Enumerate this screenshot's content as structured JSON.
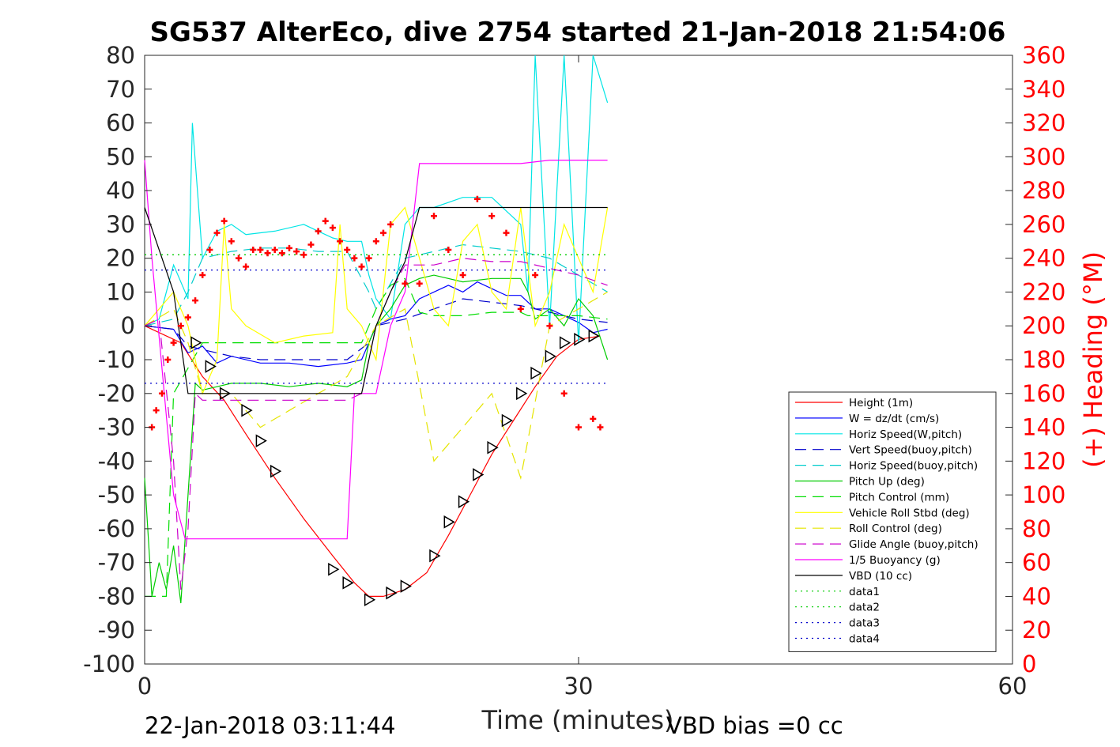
{
  "chart_data": {
    "type": "line",
    "title": "SG537 AlterEco, dive 2754 started 21-Jan-2018 21:54:06",
    "xlabel": "Time (minutes)",
    "ylabel_left": "",
    "ylabel_right": "(+) Heading (°M)",
    "xlim": [
      0,
      60
    ],
    "ylim_left": [
      -100,
      80
    ],
    "ylim_right": [
      0,
      360
    ],
    "x_ticks": [
      "0",
      "30",
      "60"
    ],
    "y_ticks_left": [
      "80",
      "70",
      "60",
      "50",
      "40",
      "30",
      "20",
      "10",
      "0",
      "-10",
      "-20",
      "-30",
      "-40",
      "-50",
      "-60",
      "-70",
      "-80",
      "-90",
      "-100"
    ],
    "y_ticks_right": [
      "360",
      "340",
      "320",
      "300",
      "280",
      "260",
      "240",
      "220",
      "200",
      "180",
      "160",
      "140",
      "120",
      "100",
      "80",
      "60",
      "40",
      "20",
      "0"
    ],
    "footer_left": "22-Jan-2018 03:11:44",
    "footer_right": "VBD bias =0 cc",
    "legend_position": "bottom-right",
    "series": [
      {
        "name": "Height (1m)",
        "color": "#ff0000",
        "style": "solid",
        "x": [
          0,
          2.5,
          4,
          5.5,
          7,
          9,
          11,
          13,
          14.5,
          15.5,
          16.5,
          18,
          19.5,
          21,
          22.5,
          24,
          25.5,
          27,
          28.5,
          30,
          31.5
        ],
        "y": [
          0,
          -5,
          -15,
          -22,
          -32,
          -45,
          -57,
          -68,
          -76,
          -80,
          -80,
          -78,
          -73,
          -62,
          -50,
          -38,
          -28,
          -18,
          -9,
          -4,
          -3
        ]
      },
      {
        "name": "W = dz/dt (cm/s)",
        "color": "#0000ff",
        "style": "solid",
        "x": [
          0,
          2,
          3,
          4,
          5,
          6,
          8,
          10,
          12,
          14,
          15,
          15.5,
          16,
          17,
          18,
          19,
          20,
          21,
          22,
          23,
          24,
          25,
          26,
          27,
          28,
          29,
          30,
          31,
          32
        ],
        "y": [
          0,
          -1,
          -8,
          -6,
          -11,
          -9,
          -11,
          -11,
          -12,
          -11,
          -10,
          -5,
          0,
          2,
          3,
          8,
          10,
          12,
          10,
          13,
          11,
          9,
          9,
          5,
          5,
          3,
          1,
          -2,
          -1
        ]
      },
      {
        "name": "Horiz Speed(W,pitch)",
        "color": "#00e5e5",
        "style": "solid",
        "x": [
          0,
          1,
          2,
          3,
          3.3,
          4,
          5,
          6,
          7,
          9,
          11,
          13,
          14,
          15,
          15.5,
          16,
          17,
          18,
          19,
          20,
          22,
          24,
          26,
          26.5,
          27,
          28,
          29,
          30,
          31,
          32
        ],
        "y": [
          0,
          2,
          18,
          8,
          60,
          20,
          28,
          30,
          27,
          28,
          30,
          26,
          25,
          25,
          15,
          8,
          2,
          30,
          35,
          35,
          38,
          38,
          30,
          10,
          80,
          0,
          80,
          -5,
          80,
          66
        ]
      },
      {
        "name": "Vert Speed(buoy,pitch)",
        "color": "#0000cc",
        "style": "dashed",
        "x": [
          0,
          2,
          3,
          4,
          6,
          8,
          10,
          12,
          14,
          15.5,
          16,
          18,
          20,
          22,
          24,
          26,
          28,
          30,
          32
        ],
        "y": [
          0,
          -1,
          -6,
          -7,
          -9,
          -10,
          -10,
          -10,
          -10,
          -5,
          0,
          2,
          5,
          8,
          7,
          6,
          4,
          2,
          1
        ]
      },
      {
        "name": "Horiz Speed(buoy,pitch)",
        "color": "#00cccc",
        "style": "dashed",
        "x": [
          0,
          2,
          3,
          4,
          6,
          8,
          10,
          12,
          14,
          15.5,
          16,
          18,
          20,
          22,
          24,
          26,
          28,
          30,
          32
        ],
        "y": [
          0,
          2,
          10,
          20,
          22,
          23,
          23,
          22,
          22,
          10,
          5,
          20,
          22,
          24,
          23,
          22,
          20,
          15,
          10
        ]
      },
      {
        "name": "Pitch Up (deg)",
        "color": "#00cc00",
        "style": "solid",
        "x": [
          0,
          0.5,
          1,
          1.5,
          2,
          2.5,
          3,
          3.5,
          4,
          5,
          6,
          8,
          10,
          12,
          14,
          15,
          15.5,
          16,
          17,
          18,
          19,
          20,
          22,
          24,
          26,
          26.5,
          27,
          28,
          29,
          30,
          31,
          32
        ],
        "y": [
          -45,
          -80,
          -70,
          -78,
          -65,
          -82,
          -50,
          -17,
          -19,
          -18,
          -17,
          -17,
          -18,
          -17,
          -18,
          -16,
          -5,
          0,
          5,
          12,
          14,
          15,
          13,
          14,
          14,
          10,
          2,
          5,
          0,
          8,
          3,
          -10
        ]
      },
      {
        "name": "Pitch Control (mm)",
        "color": "#00dd00",
        "style": "dashed",
        "x": [
          0,
          1.5,
          2,
          4,
          5,
          8,
          11,
          14,
          15,
          15.5,
          16,
          17,
          18,
          19,
          20,
          22,
          24,
          26,
          26.5,
          27,
          28,
          30,
          32
        ],
        "y": [
          -80,
          -80,
          -20,
          -5,
          -5,
          -5,
          -5,
          -5,
          -5,
          0,
          5,
          12,
          14,
          4,
          3,
          3,
          4,
          4,
          3,
          3,
          3,
          3,
          2
        ]
      },
      {
        "name": "Vehicle Roll Stbd (deg)",
        "color": "#ffff00",
        "style": "solid",
        "x": [
          0,
          1,
          2,
          3,
          4,
          5,
          5.5,
          6,
          7,
          9,
          11,
          13,
          13.5,
          14,
          15,
          16,
          17,
          18,
          19,
          20,
          21,
          22,
          23,
          24,
          25,
          26,
          27,
          28,
          29,
          30,
          31,
          32
        ],
        "y": [
          0,
          5,
          10,
          0,
          -20,
          -10,
          30,
          5,
          0,
          -5,
          -3,
          -2,
          30,
          5,
          0,
          -10,
          30,
          35,
          20,
          5,
          0,
          25,
          30,
          10,
          5,
          35,
          0,
          10,
          30,
          20,
          10,
          35
        ]
      },
      {
        "name": "Roll Control (deg)",
        "color": "#e5e500",
        "style": "dashed",
        "x": [
          0,
          2,
          3,
          4,
          6,
          8,
          10,
          12,
          14,
          16,
          18,
          20,
          22,
          24,
          26,
          28,
          30,
          32
        ],
        "y": [
          0,
          5,
          -5,
          -20,
          -20,
          -30,
          -25,
          -20,
          -15,
          0,
          5,
          -40,
          -30,
          -20,
          -45,
          0,
          5,
          10
        ]
      },
      {
        "name": "Glide Angle (buoy,pitch)",
        "color": "#cc00cc",
        "style": "dashed",
        "x": [
          0,
          1,
          2,
          2.5,
          3,
          3.5,
          4,
          5,
          8,
          11,
          14,
          15,
          16,
          17,
          18,
          20,
          22,
          24,
          26,
          28,
          30,
          32
        ],
        "y": [
          0,
          2,
          -40,
          -78,
          -60,
          -20,
          -22,
          -22,
          -22,
          -22,
          -22,
          -20,
          0,
          10,
          18,
          18,
          20,
          19,
          19,
          17,
          15,
          12
        ]
      },
      {
        "name": "1/5 Buoyancy (g)",
        "color": "#ff00ff",
        "style": "solid",
        "x": [
          0,
          0.5,
          2,
          2.8,
          3,
          4,
          5,
          8,
          11,
          14,
          14.5,
          15,
          16,
          17,
          18,
          19,
          20,
          22,
          24,
          26,
          28,
          30,
          32
        ],
        "y": [
          49,
          20,
          -50,
          -63,
          -63,
          -63,
          -63,
          -63,
          -63,
          -63,
          -20,
          -20,
          -20,
          0,
          10,
          48,
          48,
          48,
          48,
          48,
          49,
          49,
          49
        ]
      },
      {
        "name": "VBD (10 cc)",
        "color": "#000000",
        "style": "solid",
        "x": [
          0,
          2,
          3,
          5,
          8,
          11,
          14,
          15,
          15.5,
          16,
          17,
          18,
          19,
          22,
          25,
          28,
          30,
          32
        ],
        "y": [
          35,
          10,
          -20,
          -20,
          -20,
          -20,
          -20,
          -20,
          -10,
          0,
          10,
          19,
          35,
          35,
          35,
          35,
          35,
          35
        ]
      },
      {
        "name": "data1",
        "color": "#00cc00",
        "style": "dotted",
        "x": [
          0,
          32
        ],
        "y": [
          21,
          21
        ]
      },
      {
        "name": "data2",
        "color": "#00cc00",
        "style": "dotted",
        "x": [
          0,
          32
        ],
        "y": [
          21,
          21
        ]
      },
      {
        "name": "data3",
        "color": "#0000cc",
        "style": "dotted",
        "x": [
          0,
          32
        ],
        "y": [
          16.5,
          16.5
        ]
      },
      {
        "name": "data4",
        "color": "#0000cc",
        "style": "dotted",
        "x": [
          0,
          32
        ],
        "y": [
          -17,
          -17
        ]
      }
    ],
    "heading_markers": {
      "name": "(+) Heading (°M)",
      "color": "#ff0000",
      "axis": "right",
      "x": [
        0.5,
        0.8,
        1.2,
        1.6,
        2,
        2.5,
        3,
        3.5,
        4,
        4.5,
        5,
        5.5,
        6,
        6.5,
        7,
        7.5,
        8,
        8.5,
        9,
        9.5,
        10,
        10.5,
        11,
        11.5,
        12,
        12.5,
        13,
        13.5,
        14,
        14.5,
        15,
        15.5,
        16,
        16.5,
        17,
        18,
        19,
        20,
        21,
        22,
        23,
        24,
        25,
        26,
        27,
        28,
        29,
        30,
        31,
        31.5
      ],
      "y": [
        140,
        150,
        160,
        180,
        190,
        200,
        205,
        215,
        230,
        245,
        255,
        262,
        250,
        240,
        235,
        245,
        245,
        243,
        245,
        243,
        246,
        244,
        242,
        248,
        256,
        262,
        258,
        250,
        245,
        240,
        235,
        240,
        250,
        255,
        260,
        225,
        225,
        265,
        245,
        230,
        275,
        265,
        255,
        210,
        230,
        200,
        160,
        140,
        145,
        140
      ]
    },
    "position_markers": {
      "name": "",
      "color": "#000000",
      "axis": "left",
      "x": [
        3.5,
        4.5,
        5.5,
        7,
        8,
        9,
        13,
        14,
        15.5,
        17,
        18,
        20,
        21,
        22,
        23,
        24,
        25,
        26,
        27,
        28,
        29,
        30,
        31
      ],
      "y": [
        -5,
        -12,
        -20,
        -25,
        -34,
        -43,
        -72,
        -76,
        -81,
        -79,
        -77,
        -68,
        -58,
        -52,
        -44,
        -36,
        -28,
        -20,
        -14,
        -9,
        -5,
        -4,
        -3
      ]
    }
  }
}
